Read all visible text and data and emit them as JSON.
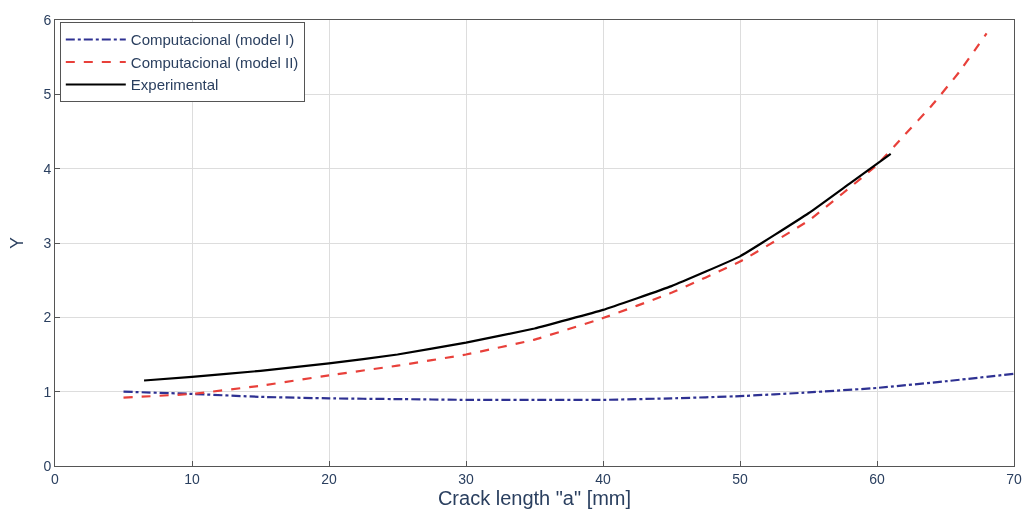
{
  "chart_data": {
    "type": "line",
    "xlabel": "Crack length \"a\" [mm]",
    "ylabel": "Y",
    "xlim": [
      0,
      70
    ],
    "xticks": [
      0,
      10,
      20,
      30,
      40,
      50,
      60,
      70
    ],
    "ylim": [
      0,
      6
    ],
    "yticks": [
      0,
      1,
      2,
      3,
      4,
      5,
      6
    ],
    "grid": true,
    "legend": "top left",
    "marker": "none",
    "series": [
      {
        "name": "Computacional (model I)",
        "color": "#2e3192",
        "line_style": "dashdot",
        "x": [
          5,
          10,
          15,
          20,
          25,
          30,
          35,
          40,
          45,
          50,
          55,
          60,
          65,
          70
        ],
        "values": [
          1.0,
          0.97,
          0.93,
          0.91,
          0.9,
          0.89,
          0.89,
          0.89,
          0.91,
          0.94,
          0.99,
          1.05,
          1.14,
          1.24
        ]
      },
      {
        "name": "Computacional (model II)",
        "color": "#e8403a",
        "line_style": "dashed",
        "x": [
          5,
          10,
          15,
          20,
          25,
          30,
          35,
          40,
          45,
          50,
          55,
          60,
          62,
          64,
          66,
          68
        ],
        "values": [
          0.92,
          0.97,
          1.08,
          1.22,
          1.35,
          1.5,
          1.7,
          1.99,
          2.33,
          2.75,
          3.3,
          4.05,
          4.45,
          4.85,
          5.3,
          5.82
        ]
      },
      {
        "name": "Experimental",
        "color": "#000000",
        "line_style": "solid",
        "x": [
          6.5,
          10,
          15,
          20,
          25,
          30,
          35,
          40,
          45,
          50,
          55,
          58,
          61
        ],
        "values": [
          1.15,
          1.2,
          1.28,
          1.38,
          1.5,
          1.66,
          1.85,
          2.1,
          2.42,
          2.82,
          3.4,
          3.8,
          4.2
        ]
      }
    ]
  }
}
